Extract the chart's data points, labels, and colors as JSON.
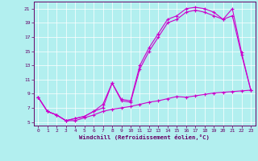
{
  "xlabel": "Windchill (Refroidissement éolien,°C)",
  "background_color": "#b2efef",
  "grid_color": "#ffffff",
  "line_color": "#cc00cc",
  "xlim": [
    -0.5,
    23.5
  ],
  "ylim": [
    4.5,
    22.0
  ],
  "xticks": [
    0,
    1,
    2,
    3,
    4,
    5,
    6,
    7,
    8,
    9,
    10,
    11,
    12,
    13,
    14,
    15,
    16,
    17,
    18,
    19,
    20,
    21,
    22,
    23
  ],
  "yticks": [
    5,
    7,
    9,
    11,
    13,
    15,
    17,
    19,
    21
  ],
  "curve1_x": [
    0,
    1,
    2,
    3,
    4,
    5,
    6,
    7,
    8,
    9,
    10,
    11,
    12,
    13,
    14,
    15,
    16,
    17,
    18,
    19,
    20,
    21,
    22,
    23
  ],
  "curve1_y": [
    8.5,
    6.5,
    6.0,
    5.2,
    5.5,
    5.8,
    6.5,
    7.5,
    10.5,
    8.2,
    8.0,
    13.0,
    15.5,
    17.5,
    19.5,
    20.0,
    21.0,
    21.2,
    21.0,
    20.5,
    19.5,
    21.0,
    14.8,
    9.5
  ],
  "curve2_x": [
    0,
    1,
    2,
    3,
    4,
    5,
    6,
    7,
    8,
    9,
    10,
    11,
    12,
    13,
    14,
    15,
    16,
    17,
    18,
    19,
    20,
    21,
    22,
    23
  ],
  "curve2_y": [
    8.5,
    6.5,
    6.0,
    5.2,
    5.5,
    5.8,
    6.5,
    7.0,
    10.5,
    8.0,
    7.8,
    12.5,
    15.0,
    17.0,
    19.0,
    19.5,
    20.5,
    20.8,
    20.5,
    20.0,
    19.5,
    20.0,
    14.5,
    9.5
  ],
  "curve3_x": [
    0,
    1,
    2,
    3,
    4,
    5,
    6,
    7,
    8,
    9,
    10,
    11,
    12,
    13,
    14,
    15,
    16,
    17,
    18,
    19,
    20,
    21,
    22,
    23
  ],
  "curve3_y": [
    8.5,
    6.5,
    6.0,
    5.2,
    5.2,
    5.6,
    6.0,
    6.5,
    6.8,
    7.0,
    7.2,
    7.5,
    7.8,
    8.0,
    8.3,
    8.6,
    8.5,
    8.7,
    8.9,
    9.1,
    9.2,
    9.3,
    9.4,
    9.5
  ]
}
